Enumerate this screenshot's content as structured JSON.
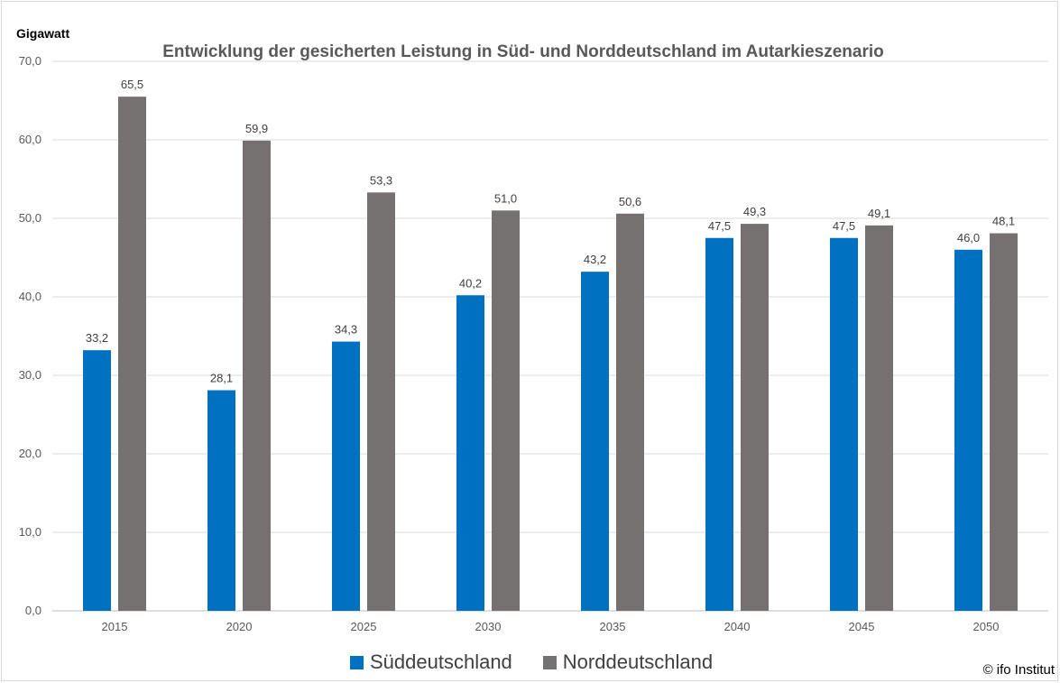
{
  "chart_data": {
    "type": "bar",
    "title": "Entwicklung der gesicherten Leistung in Süd- und Norddeutschland im Autarkieszenario",
    "ylabel": "Gigawatt",
    "xlabel": "",
    "ylim": [
      0,
      70
    ],
    "yticks": [
      "0,0",
      "10,0",
      "20,0",
      "30,0",
      "40,0",
      "50,0",
      "60,0",
      "70,0"
    ],
    "categories": [
      "2015",
      "2020",
      "2025",
      "2030",
      "2035",
      "2040",
      "2045",
      "2050"
    ],
    "grid": true,
    "legend_position": "bottom",
    "series": [
      {
        "name": "Süddeutschland",
        "color": "#0070c0",
        "values": [
          33.2,
          28.1,
          34.3,
          40.2,
          43.2,
          47.5,
          47.5,
          46.0
        ],
        "labels": [
          "33,2",
          "28,1",
          "34,3",
          "40,2",
          "43,2",
          "47,5",
          "47,5",
          "46,0"
        ]
      },
      {
        "name": "Norddeutschland",
        "color": "#767171",
        "values": [
          65.5,
          59.9,
          53.3,
          51.0,
          50.6,
          49.3,
          49.1,
          48.1
        ],
        "labels": [
          "65,5",
          "59,9",
          "53,3",
          "51,0",
          "50,6",
          "49,3",
          "49,1",
          "48,1"
        ]
      }
    ]
  },
  "copyright": "© ifo Institut"
}
